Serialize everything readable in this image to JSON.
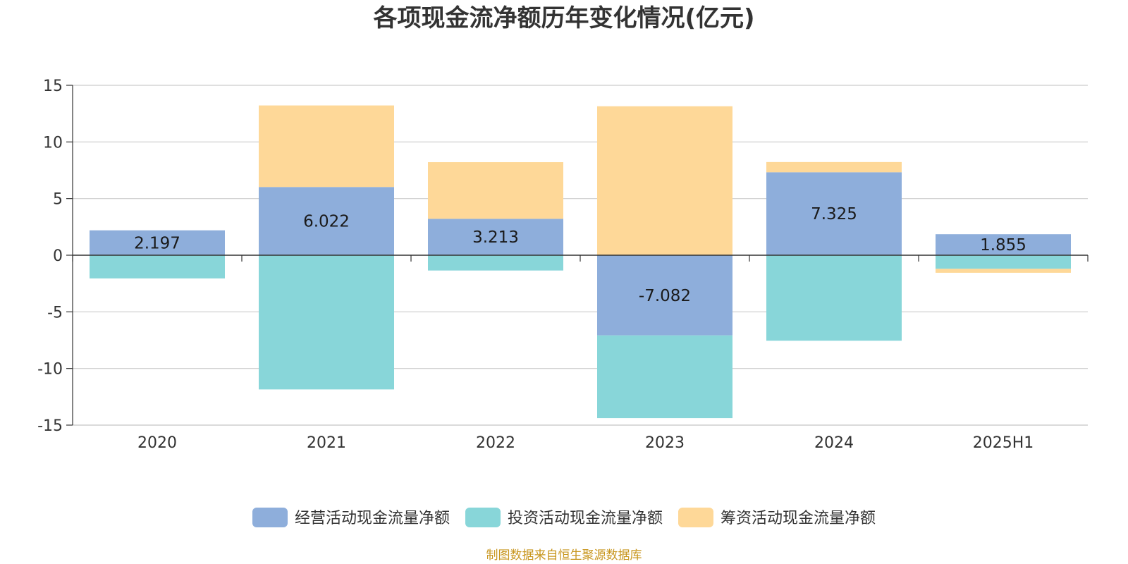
{
  "chart_data": {
    "type": "bar",
    "stacked": true,
    "title": "各项现金流净额历年变化情况(亿元)",
    "categories": [
      "2020",
      "2021",
      "2022",
      "2023",
      "2024",
      "2025H1"
    ],
    "series": [
      {
        "name": "经营活动现金流量净额",
        "color": "#8eaedb",
        "values": [
          2.197,
          6.022,
          3.213,
          -7.082,
          7.325,
          1.855
        ],
        "labels": [
          "2.197",
          "6.022",
          "3.213",
          "-7.082",
          "7.325",
          "1.855"
        ]
      },
      {
        "name": "投资活动现金流量净额",
        "color": "#88d6d9",
        "values": [
          -2.05,
          -11.85,
          -1.35,
          -7.3,
          -7.55,
          -1.2
        ]
      },
      {
        "name": "筹资活动现金流量净额",
        "color": "#fed898",
        "values": [
          0,
          7.2,
          5.0,
          13.15,
          0.9,
          -0.35
        ]
      }
    ],
    "ylim": [
      -15,
      15
    ],
    "yticks": [
      -15,
      -10,
      -5,
      0,
      5,
      10,
      15
    ],
    "ytick_labels": [
      "-15",
      "-10",
      "-5",
      "0",
      "5",
      "10",
      "15"
    ],
    "xlabel": "",
    "ylabel": "",
    "grid": true,
    "legend_position": "bottom-center",
    "source": "制图数据来自恒生聚源数据库",
    "source_color": "#c8961e"
  }
}
